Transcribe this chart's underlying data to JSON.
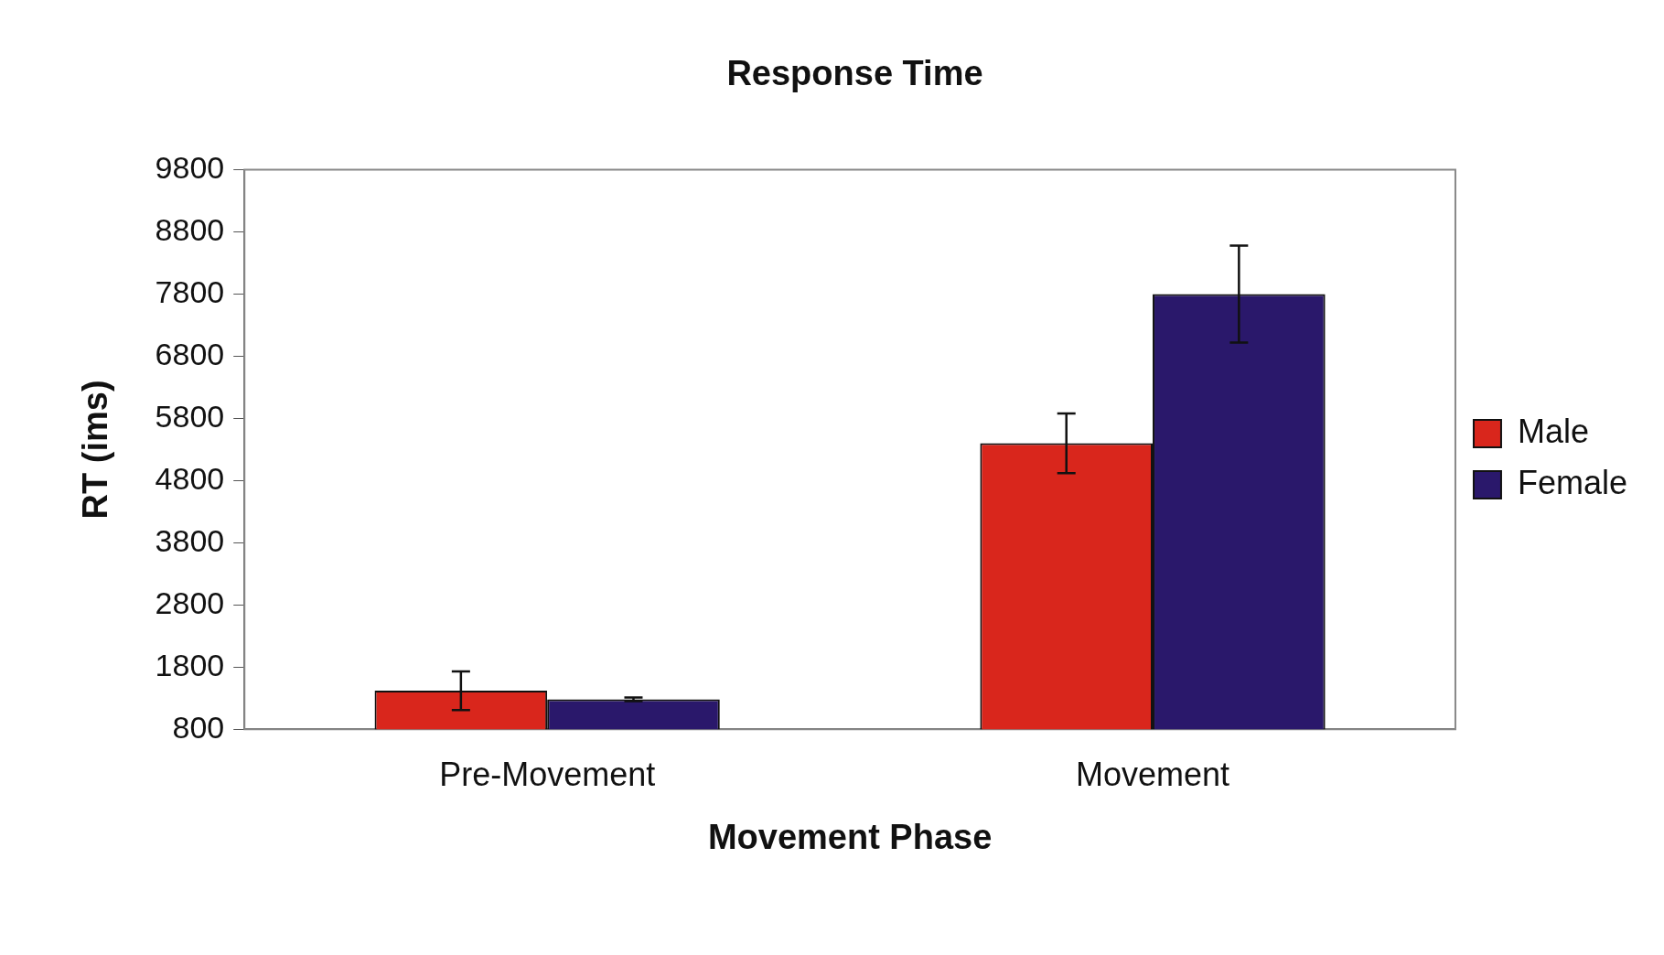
{
  "chart_data": {
    "type": "bar",
    "title": "Response Time",
    "xlabel": "Movement Phase",
    "ylabel": "RT (ims)",
    "categories": [
      "Pre-Movement",
      "Movement"
    ],
    "series": [
      {
        "name": "Male",
        "color": "#d9261c",
        "values": [
          1420,
          5400
        ],
        "errors": [
          310,
          480
        ]
      },
      {
        "name": "Female",
        "color": "#2a186b",
        "values": [
          1280,
          7800
        ],
        "errors": [
          30,
          780
        ]
      }
    ],
    "ylim": [
      800,
      9800
    ],
    "yticks": [
      800,
      1800,
      2800,
      3800,
      4800,
      5800,
      6800,
      7800,
      8800,
      9800
    ],
    "grid": false,
    "legend": "right"
  }
}
